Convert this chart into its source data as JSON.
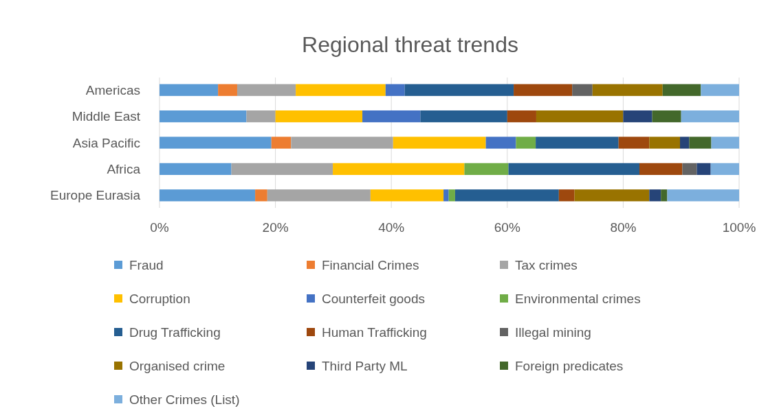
{
  "chart_data": {
    "type": "bar",
    "orientation": "horizontal",
    "stacked": true,
    "title": "Regional threat trends",
    "categories": [
      "Americas",
      "Middle East",
      "Asia Pacific",
      "Africa",
      "Europe Eurasia"
    ],
    "xlim": [
      0,
      100
    ],
    "xticks": [
      {
        "value": 0,
        "label": "0%"
      },
      {
        "value": 20,
        "label": "20%"
      },
      {
        "value": 40,
        "label": "40%"
      },
      {
        "value": 60,
        "label": "60%"
      },
      {
        "value": 80,
        "label": "80%"
      },
      {
        "value": 100,
        "label": "100%"
      }
    ],
    "grid": "x",
    "legend": "bottom",
    "series": [
      {
        "name": "Fraud",
        "color": "#5b9bd5",
        "values": [
          10.1,
          15,
          19.3,
          12.4,
          16.5
        ]
      },
      {
        "name": "Financial Crimes",
        "color": "#ed7d31",
        "values": [
          3.3,
          0,
          3.4,
          0,
          2.1
        ]
      },
      {
        "name": "Tax crimes",
        "color": "#a5a5a5",
        "values": [
          10.1,
          5,
          17.6,
          17.5,
          17.8
        ]
      },
      {
        "name": "Corruption",
        "color": "#ffc000",
        "values": [
          15.5,
          15,
          16.0,
          22.7,
          12.6
        ]
      },
      {
        "name": "Counterfeit goods",
        "color": "#4472c4",
        "values": [
          3.3,
          10,
          5.2,
          0,
          0.9
        ]
      },
      {
        "name": "Environmental crimes",
        "color": "#70ad47",
        "values": [
          0,
          0,
          3.4,
          7.6,
          1.1
        ]
      },
      {
        "name": "Drug Trafficking",
        "color": "#255e91",
        "values": [
          18.8,
          15,
          14.3,
          22.6,
          17.9
        ]
      },
      {
        "name": "Human Trafficking",
        "color": "#9e480e",
        "values": [
          10.1,
          5,
          5.3,
          7.4,
          2.7
        ]
      },
      {
        "name": "Illegal mining",
        "color": "#636363",
        "values": [
          3.5,
          0,
          0,
          2.5,
          0
        ]
      },
      {
        "name": "Organised crime",
        "color": "#997300",
        "values": [
          12.1,
          15,
          5.3,
          0,
          12.9
        ]
      },
      {
        "name": "Third Party ML",
        "color": "#264478",
        "values": [
          0,
          5,
          1.6,
          2.4,
          2.0
        ]
      },
      {
        "name": "Foreign predicates",
        "color": "#43682b",
        "values": [
          6.6,
          5,
          3.8,
          0,
          1.1
        ]
      },
      {
        "name": "Other Crimes (List)",
        "color": "#7cafdd",
        "values": [
          6.6,
          10,
          4.8,
          4.9,
          12.4
        ]
      }
    ]
  }
}
